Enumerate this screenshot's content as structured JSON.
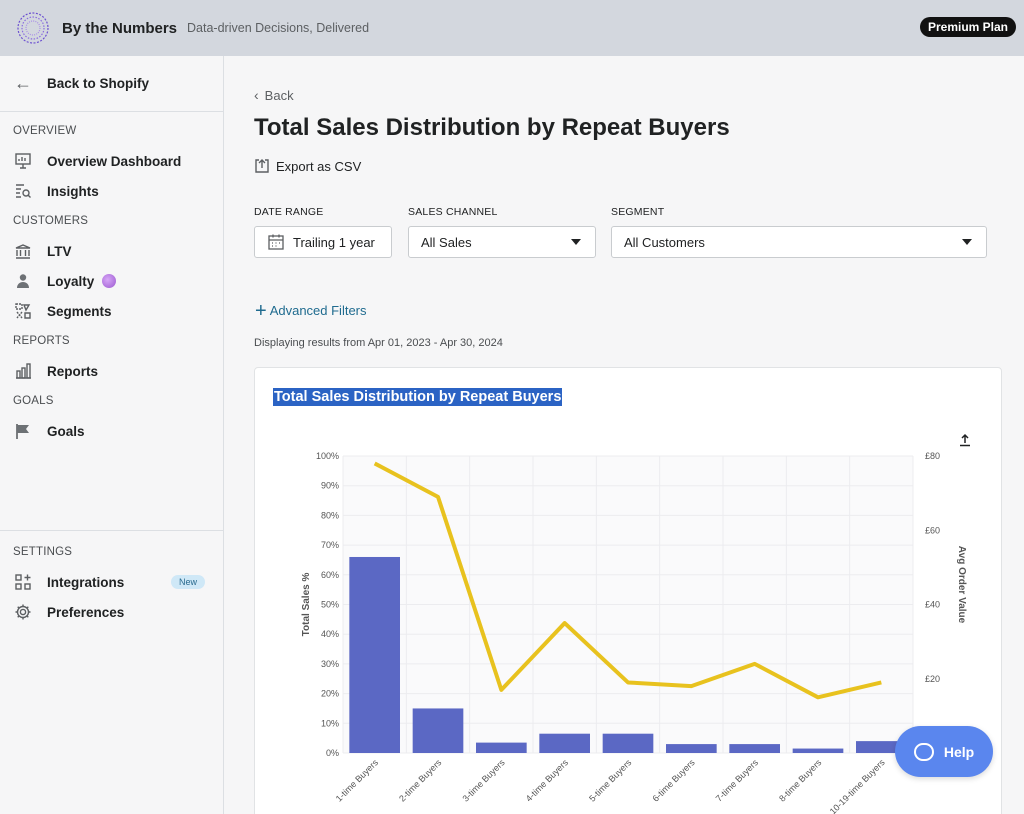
{
  "app": {
    "brand": "By the Numbers",
    "tagline": "Data-driven Decisions, Delivered",
    "plan": "Premium Plan"
  },
  "sidebar": {
    "back_label": "Back to Shopify",
    "sections": {
      "overview": "OVERVIEW",
      "customers": "CUSTOMERS",
      "reports": "REPORTS",
      "goals": "GOALS",
      "settings": "SETTINGS"
    },
    "items": {
      "overview_dashboard": "Overview Dashboard",
      "insights": "Insights",
      "ltv": "LTV",
      "loyalty": "Loyalty",
      "segments": "Segments",
      "reports": "Reports",
      "goals": "Goals",
      "integrations": "Integrations",
      "preferences": "Preferences"
    },
    "new_badge": "New"
  },
  "main": {
    "back_label": "Back",
    "title": "Total Sales Distribution by Repeat Buyers",
    "export_label": "Export as CSV",
    "filters": {
      "date_range_label": "DATE RANGE",
      "date_range_value": "Trailing 1 year",
      "sales_channel_label": "SALES CHANNEL",
      "sales_channel_value": "All Sales",
      "segment_label": "SEGMENT",
      "segment_value": "All Customers"
    },
    "advanced_filters": "Advanced Filters",
    "displaying": "Displaying results from Apr 01, 2023 - Apr 30, 2024"
  },
  "help": {
    "label": "Help"
  },
  "colors": {
    "bar": "#5b68c4",
    "line": "#e8c21e",
    "accent": "#1f6b8f"
  },
  "chart_data": {
    "type": "bar",
    "title": "Total Sales Distribution by Repeat Buyers",
    "categories": [
      "1-time Buyers",
      "2-time Buyers",
      "3-time Buyers",
      "4-time Buyers",
      "5-time Buyers",
      "6-time Buyers",
      "7-time Buyers",
      "8-time Buyers",
      "10-19-time Buyers"
    ],
    "series": [
      {
        "kind": "bar",
        "axis": "left",
        "values": [
          66,
          15,
          3.5,
          6.5,
          6.5,
          3,
          3,
          1.5,
          4
        ]
      },
      {
        "kind": "line",
        "axis": "right",
        "values": [
          78,
          69,
          17,
          35,
          19,
          18,
          24,
          15,
          19
        ]
      }
    ],
    "ylabel": "Total Sales %",
    "y2label": "Avg Order Value",
    "ylim": [
      0,
      100
    ],
    "y2lim": [
      0,
      80
    ],
    "yticks": [
      "0%",
      "10%",
      "20%",
      "30%",
      "40%",
      "50%",
      "60%",
      "70%",
      "80%",
      "90%",
      "100%"
    ],
    "y2ticks": [
      "£20",
      "£40",
      "£60",
      "£80"
    ],
    "grid": true
  }
}
